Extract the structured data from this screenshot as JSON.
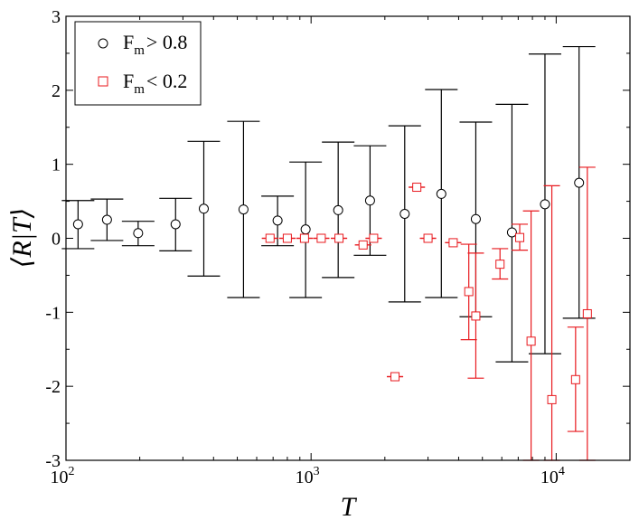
{
  "chart_data": {
    "type": "scatter",
    "xscale": "log",
    "xlim": [
      100,
      20000
    ],
    "ylim": [
      -3,
      3
    ],
    "xlabel": "T",
    "ylabel": "⟨R|T⟩",
    "yticks": [
      "-3",
      "-2",
      "-1",
      "0",
      "1",
      "2",
      "3"
    ],
    "xticks": [
      {
        "base": "10",
        "exp": "2",
        "value": 100
      },
      {
        "base": "10",
        "exp": "3",
        "value": 1000
      },
      {
        "base": "10",
        "exp": "4",
        "value": 10000
      }
    ],
    "legend": {
      "position": "top-left",
      "entries": [
        {
          "main": "F",
          "sub": "m",
          "rest": "> 0.8"
        },
        {
          "main": "F",
          "sub": "m",
          "rest": "< 0.2"
        }
      ]
    },
    "series": [
      {
        "name": "Fm > 0.8",
        "color": "#000000",
        "marker": "circle",
        "points": [
          {
            "x": 112,
            "y": 0.19,
            "lo": -0.14,
            "hi": 0.51
          },
          {
            "x": 147,
            "y": 0.25,
            "lo": -0.03,
            "hi": 0.53
          },
          {
            "x": 197,
            "y": 0.07,
            "lo": -0.1,
            "hi": 0.23
          },
          {
            "x": 280,
            "y": 0.19,
            "lo": -0.17,
            "hi": 0.54
          },
          {
            "x": 365,
            "y": 0.4,
            "lo": -0.51,
            "hi": 1.31
          },
          {
            "x": 530,
            "y": 0.39,
            "lo": -0.8,
            "hi": 1.58
          },
          {
            "x": 730,
            "y": 0.24,
            "lo": -0.1,
            "hi": 0.57
          },
          {
            "x": 950,
            "y": 0.12,
            "lo": -0.8,
            "hi": 1.03
          },
          {
            "x": 1290,
            "y": 0.38,
            "lo": -0.53,
            "hi": 1.3
          },
          {
            "x": 1740,
            "y": 0.51,
            "lo": -0.23,
            "hi": 1.25
          },
          {
            "x": 2410,
            "y": 0.33,
            "lo": -0.86,
            "hi": 1.52
          },
          {
            "x": 3400,
            "y": 0.6,
            "lo": -0.8,
            "hi": 2.01
          },
          {
            "x": 4700,
            "y": 0.26,
            "lo": -1.06,
            "hi": 1.57
          },
          {
            "x": 6600,
            "y": 0.08,
            "lo": -1.67,
            "hi": 1.81
          },
          {
            "x": 9000,
            "y": 0.46,
            "lo": -1.56,
            "hi": 2.49
          },
          {
            "x": 12400,
            "y": 0.75,
            "lo": -1.08,
            "hi": 2.59
          }
        ]
      },
      {
        "name": "Fm < 0.2",
        "color": "#e8191e",
        "marker": "square",
        "points": [
          {
            "x": 680,
            "y": 0.0,
            "lo": 0.0,
            "hi": 0.0
          },
          {
            "x": 800,
            "y": 0.0,
            "lo": 0.0,
            "hi": 0.0
          },
          {
            "x": 940,
            "y": 0.0,
            "lo": 0.0,
            "hi": 0.0
          },
          {
            "x": 1100,
            "y": 0.0,
            "lo": 0.0,
            "hi": 0.0
          },
          {
            "x": 1300,
            "y": 0.0,
            "lo": 0.0,
            "hi": 0.0
          },
          {
            "x": 1630,
            "y": -0.09,
            "lo": -0.09,
            "hi": -0.09
          },
          {
            "x": 1800,
            "y": 0.0,
            "lo": 0.0,
            "hi": 0.0
          },
          {
            "x": 2200,
            "y": -1.87,
            "lo": -1.87,
            "hi": -1.87
          },
          {
            "x": 2700,
            "y": 0.69,
            "lo": 0.69,
            "hi": 0.69
          },
          {
            "x": 3000,
            "y": 0.0,
            "lo": 0.0,
            "hi": 0.0
          },
          {
            "x": 3800,
            "y": -0.06,
            "lo": -0.06,
            "hi": -0.06
          },
          {
            "x": 4400,
            "y": -0.72,
            "lo": -1.37,
            "hi": -0.08
          },
          {
            "x": 4700,
            "y": -1.05,
            "lo": -1.89,
            "hi": -0.2
          },
          {
            "x": 5900,
            "y": -0.35,
            "lo": -0.55,
            "hi": -0.14
          },
          {
            "x": 7100,
            "y": 0.01,
            "lo": -0.16,
            "hi": 0.19
          },
          {
            "x": 7900,
            "y": -1.39,
            "lo": -3.0,
            "hi": 0.37
          },
          {
            "x": 9600,
            "y": -2.18,
            "lo": -3.0,
            "hi": 0.71
          },
          {
            "x": 12000,
            "y": -1.91,
            "lo": -2.61,
            "hi": -1.2
          },
          {
            "x": 13400,
            "y": -1.02,
            "lo": -3.0,
            "hi": 0.96
          }
        ]
      }
    ]
  }
}
